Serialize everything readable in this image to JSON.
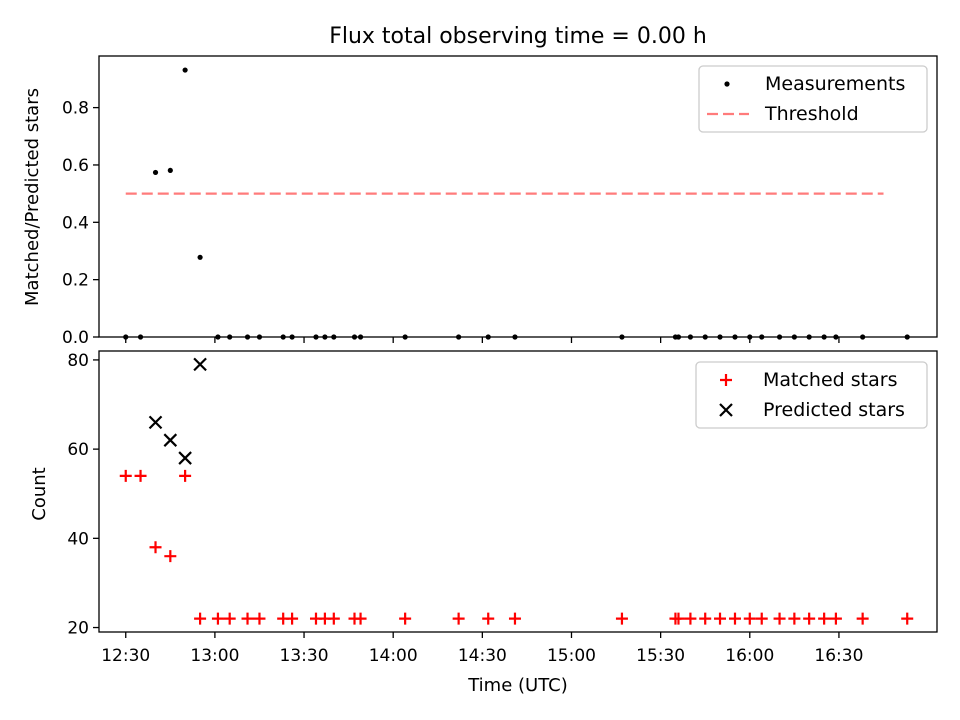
{
  "chart_data": [
    {
      "type": "scatter",
      "title": "Flux total observing time = 0.00 h",
      "xlabel": "",
      "ylabel": "Matched/Predicted stars",
      "ylim": [
        0,
        0.98
      ],
      "yticks": [
        "0.0",
        "0.2",
        "0.4",
        "0.6",
        "0.8"
      ],
      "legend": {
        "placement": "top-right",
        "entries": [
          "Measurements",
          "Threshold"
        ]
      },
      "series": [
        {
          "name": "Measurements",
          "x": [
            12.5,
            12.583,
            12.667,
            12.75,
            12.833,
            12.917,
            13.017,
            13.083,
            13.183,
            13.25,
            13.383,
            13.433,
            13.567,
            13.617,
            13.667,
            13.783,
            13.817,
            14.067,
            14.367,
            14.533,
            14.683,
            15.283,
            15.583,
            15.6,
            15.667,
            15.75,
            15.833,
            15.917,
            16.0,
            16.067,
            16.167,
            16.25,
            16.333,
            16.417,
            16.483,
            16.633,
            16.883
          ],
          "y": [
            0,
            0,
            0.574,
            0.581,
            0.931,
            0.278,
            0,
            0,
            0,
            0,
            0,
            0,
            0,
            0,
            0,
            0,
            0,
            0,
            0,
            0,
            0,
            0,
            0,
            0,
            0,
            0,
            0,
            0,
            0,
            0,
            0,
            0,
            0,
            0,
            0,
            0,
            0
          ]
        },
        {
          "name": "Threshold",
          "x": [
            12.5,
            16.75
          ],
          "y": [
            0.5,
            0.5
          ]
        }
      ],
      "colors": {
        "measurements": "#000000",
        "threshold": "#ff7b7b"
      }
    },
    {
      "type": "scatter",
      "title": "",
      "xlabel": "Time (UTC)",
      "ylabel": "Count",
      "ylim": [
        19,
        82
      ],
      "yticks": [
        "20",
        "40",
        "60",
        "80"
      ],
      "xlim": [
        12.35,
        17.05
      ],
      "xtick_values": [
        12.5,
        13.0,
        13.5,
        14.0,
        14.5,
        15.0,
        15.5,
        16.0,
        16.5
      ],
      "xticks": [
        "12:30",
        "13:00",
        "13:30",
        "14:00",
        "14:30",
        "15:00",
        "15:30",
        "16:00",
        "16:30"
      ],
      "legend": {
        "placement": "top-right",
        "entries": [
          "Matched stars",
          "Predicted stars"
        ]
      },
      "series": [
        {
          "name": "Matched stars",
          "x": [
            12.5,
            12.583,
            12.667,
            12.75,
            12.833,
            12.917,
            13.017,
            13.083,
            13.183,
            13.25,
            13.383,
            13.433,
            13.567,
            13.617,
            13.667,
            13.783,
            13.817,
            14.067,
            14.367,
            14.533,
            14.683,
            15.283,
            15.583,
            15.6,
            15.667,
            15.75,
            15.833,
            15.917,
            16.0,
            16.067,
            16.167,
            16.25,
            16.333,
            16.417,
            16.483,
            16.633,
            16.883
          ],
          "y": [
            54,
            54,
            38,
            36,
            54,
            22,
            22,
            22,
            22,
            22,
            22,
            22,
            22,
            22,
            22,
            22,
            22,
            22,
            22,
            22,
            22,
            22,
            22,
            22,
            22,
            22,
            22,
            22,
            22,
            22,
            22,
            22,
            22,
            22,
            22,
            22,
            22
          ]
        },
        {
          "name": "Predicted stars",
          "x": [
            12.667,
            12.75,
            12.833,
            12.917
          ],
          "y": [
            66,
            62,
            58,
            79
          ]
        }
      ],
      "colors": {
        "matched": "#ff0000",
        "predicted": "#000000"
      }
    }
  ]
}
